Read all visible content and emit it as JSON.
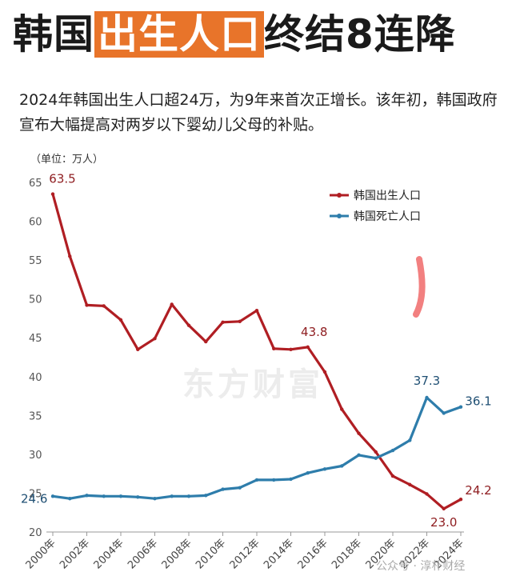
{
  "header": {
    "title_part1": "韩国",
    "title_highlight": "出生人口",
    "title_part2": "终结8连降",
    "subtitle": "2024年韩国出生人口超24万，为9年来首次正增长。该年初，韩国政府宣布大幅提高对两岁以下婴幼儿父母的补贴。"
  },
  "unit_label": "（单位：万人）",
  "watermark": "东方财富",
  "footer_mark": "公众号 · 淳朴财经",
  "colors": {
    "birth": "#b01e23",
    "death": "#2e7dab",
    "accent": "#e8742a",
    "axis": "#999999"
  },
  "chart_data": {
    "type": "line",
    "x": [
      2000,
      2001,
      2002,
      2003,
      2004,
      2005,
      2006,
      2007,
      2008,
      2009,
      2010,
      2011,
      2012,
      2013,
      2014,
      2015,
      2016,
      2017,
      2018,
      2019,
      2020,
      2021,
      2022,
      2023,
      2024
    ],
    "x_tick_labels": [
      "2000年",
      "2002年",
      "2004年",
      "2006年",
      "2008年",
      "2010年",
      "2012年",
      "2014年",
      "2016年",
      "2018年",
      "2020年",
      "2022年",
      "2024年"
    ],
    "ylim": [
      20,
      65
    ],
    "yticks": [
      20,
      25,
      30,
      35,
      40,
      45,
      50,
      55,
      60,
      65
    ],
    "series": [
      {
        "name": "韩国出生人口",
        "color": "#b01e23",
        "values": [
          63.5,
          55.5,
          49.2,
          49.1,
          47.3,
          43.5,
          44.9,
          49.3,
          46.6,
          44.5,
          47.0,
          47.1,
          48.5,
          43.6,
          43.5,
          43.8,
          40.6,
          35.8,
          32.7,
          30.3,
          27.2,
          26.1,
          24.9,
          23.0,
          24.2
        ]
      },
      {
        "name": "韩国死亡人口",
        "color": "#2e7dab",
        "values": [
          24.6,
          24.3,
          24.7,
          24.6,
          24.6,
          24.5,
          24.3,
          24.6,
          24.6,
          24.7,
          25.5,
          25.7,
          26.7,
          26.7,
          26.8,
          27.6,
          28.1,
          28.5,
          29.9,
          29.5,
          30.5,
          31.8,
          37.3,
          35.3,
          36.1
        ]
      }
    ],
    "annotations": [
      {
        "series": 0,
        "x": 2000,
        "text": "63.5"
      },
      {
        "series": 0,
        "x": 2015,
        "text": "43.8"
      },
      {
        "series": 0,
        "x": 2023,
        "text": "23.0"
      },
      {
        "series": 0,
        "x": 2024,
        "text": "24.2"
      },
      {
        "series": 1,
        "x": 2000,
        "text": "24.6"
      },
      {
        "series": 1,
        "x": 2022,
        "text": "37.3"
      },
      {
        "series": 1,
        "x": 2024,
        "text": "36.1"
      }
    ],
    "legend_position": "top-right"
  }
}
